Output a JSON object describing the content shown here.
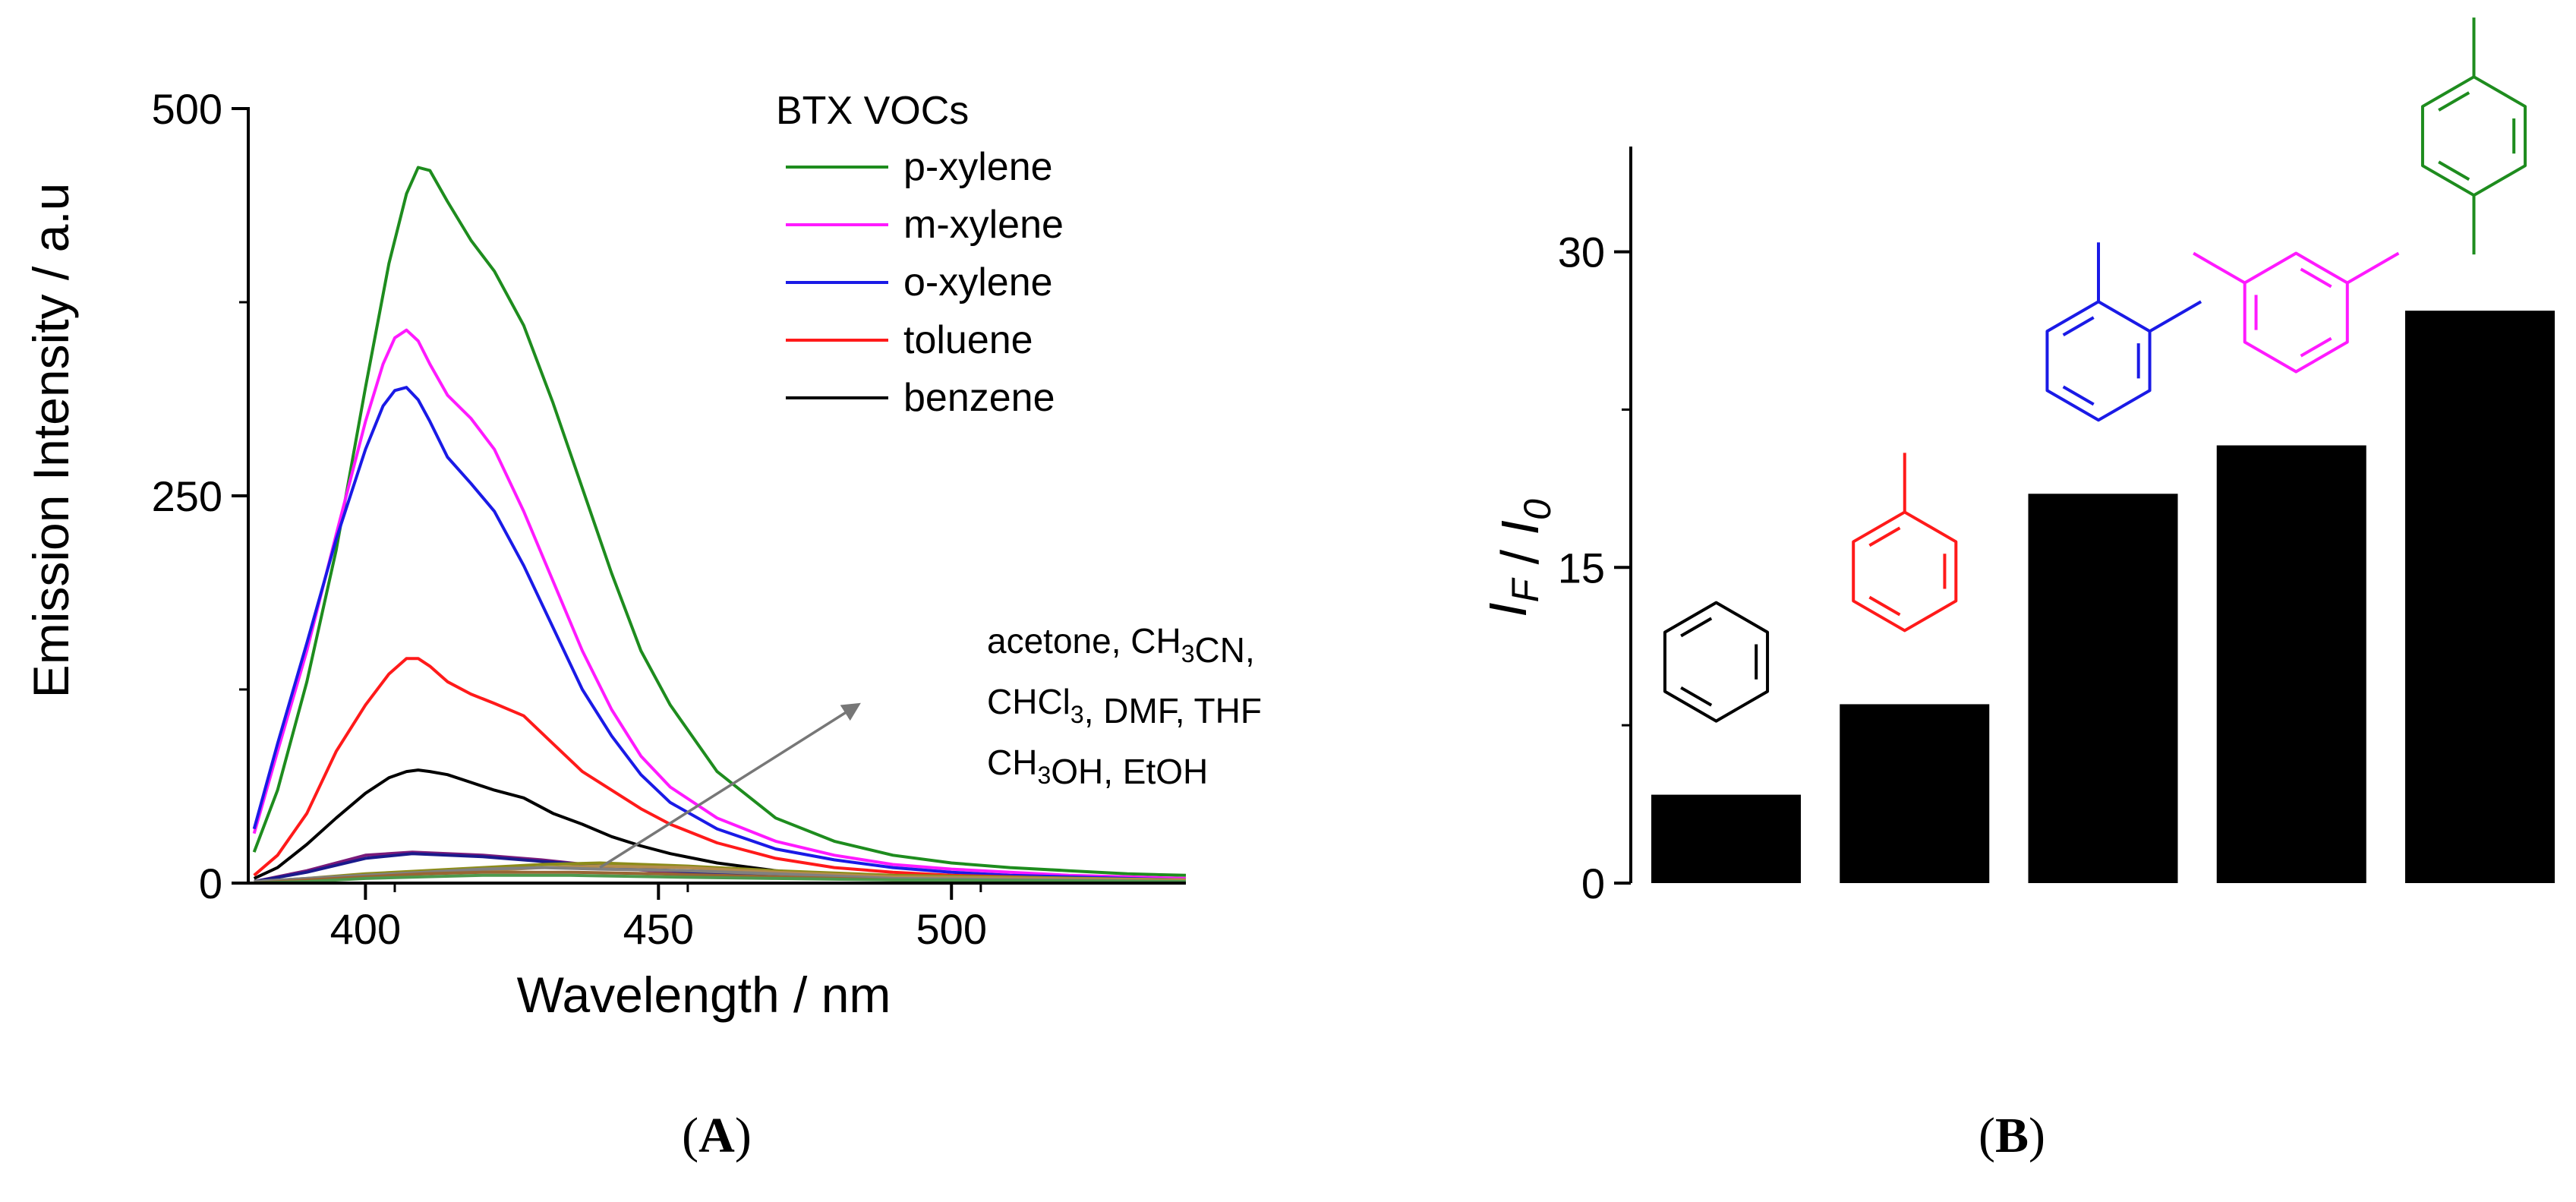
{
  "chart_data": [
    {
      "panel_label": "A",
      "type": "line",
      "title": "",
      "xlabel": "Wavelength / nm",
      "ylabel": "Emission Intensity / a.u",
      "xlim": [
        380,
        540
      ],
      "ylim": [
        0,
        500
      ],
      "xticks": [
        400,
        450,
        500
      ],
      "yticks": [
        0,
        250,
        500
      ],
      "grid": false,
      "legend": {
        "title": "BTX VOCs",
        "position": "top-right"
      },
      "series": [
        {
          "name": "p-xylene",
          "color": "#1e8c1e",
          "x": [
            381,
            385,
            390,
            395,
            400,
            404,
            407,
            409,
            411,
            414,
            418,
            422,
            427,
            432,
            437,
            442,
            447,
            452,
            460,
            470,
            480,
            490,
            500,
            510,
            520,
            530,
            540
          ],
          "y": [
            20,
            60,
            130,
            215,
            320,
            400,
            445,
            462,
            460,
            440,
            415,
            395,
            360,
            310,
            255,
            200,
            150,
            115,
            72,
            42,
            27,
            18,
            13,
            10,
            8,
            6,
            5
          ]
        },
        {
          "name": "m-xylene",
          "color": "#ff1aff",
          "x": [
            381,
            385,
            390,
            395,
            400,
            403,
            405,
            407,
            409,
            411,
            414,
            418,
            422,
            427,
            432,
            437,
            442,
            447,
            452,
            460,
            470,
            480,
            490,
            500,
            510,
            520,
            530,
            540
          ],
          "y": [
            32,
            85,
            150,
            225,
            298,
            335,
            352,
            357,
            350,
            335,
            315,
            300,
            280,
            240,
            195,
            150,
            112,
            82,
            62,
            42,
            27,
            18,
            12,
            9,
            7,
            5,
            4,
            3
          ]
        },
        {
          "name": "o-xylene",
          "color": "#1a1ae6",
          "x": [
            381,
            385,
            390,
            395,
            400,
            403,
            405,
            407,
            409,
            411,
            414,
            418,
            422,
            427,
            432,
            437,
            442,
            447,
            452,
            460,
            470,
            480,
            490,
            500,
            510,
            520,
            530,
            540
          ],
          "y": [
            35,
            90,
            155,
            222,
            280,
            308,
            318,
            320,
            312,
            298,
            275,
            258,
            240,
            205,
            165,
            125,
            95,
            70,
            52,
            35,
            22,
            15,
            10,
            7,
            5,
            4,
            3,
            2
          ]
        },
        {
          "name": "toluene",
          "color": "#ff1a1a",
          "x": [
            381,
            385,
            390,
            395,
            400,
            404,
            407,
            409,
            411,
            414,
            418,
            422,
            427,
            432,
            437,
            442,
            447,
            452,
            460,
            470,
            480,
            490,
            500,
            510,
            520,
            530,
            540
          ],
          "y": [
            5,
            18,
            45,
            85,
            115,
            135,
            145,
            145,
            140,
            130,
            122,
            116,
            108,
            90,
            72,
            60,
            48,
            38,
            26,
            16,
            10,
            7,
            5,
            4,
            3,
            2,
            2
          ]
        },
        {
          "name": "benzene",
          "color": "#000000",
          "x": [
            381,
            385,
            390,
            395,
            400,
            404,
            407,
            409,
            411,
            414,
            418,
            422,
            427,
            432,
            437,
            442,
            447,
            452,
            460,
            470,
            480,
            490,
            500,
            510,
            520,
            530,
            540
          ],
          "y": [
            3,
            10,
            25,
            42,
            58,
            68,
            72,
            73,
            72,
            70,
            65,
            60,
            55,
            45,
            38,
            30,
            24,
            19,
            13,
            8,
            5,
            4,
            3,
            2,
            2,
            1,
            1
          ]
        },
        {
          "name": "acetone",
          "color": "#7a1a7a",
          "x": [
            381,
            390,
            400,
            408,
            420,
            430,
            445,
            460,
            480,
            500,
            540
          ],
          "y": [
            1,
            8,
            18,
            20,
            18,
            15,
            9,
            5,
            3,
            2,
            1
          ]
        },
        {
          "name": "CH3CN",
          "color": "#1a1a8c",
          "x": [
            381,
            390,
            400,
            408,
            420,
            430,
            445,
            460,
            480,
            500,
            540
          ],
          "y": [
            1,
            7,
            16,
            19,
            17,
            14,
            10,
            6,
            3,
            2,
            1
          ]
        },
        {
          "name": "CHCl3",
          "color": "#8c8c1a",
          "x": [
            381,
            390,
            400,
            410,
            420,
            430,
            440,
            455,
            470,
            490,
            540
          ],
          "y": [
            1,
            3,
            6,
            8,
            10,
            12,
            13,
            11,
            8,
            5,
            2
          ]
        },
        {
          "name": "DMF",
          "color": "#b38c4d",
          "x": [
            381,
            390,
            400,
            410,
            420,
            430,
            440,
            455,
            470,
            490,
            540
          ],
          "y": [
            1,
            2,
            4,
            6,
            8,
            10,
            11,
            10,
            7,
            4,
            2
          ]
        },
        {
          "name": "THF",
          "color": "#808080",
          "x": [
            381,
            390,
            400,
            410,
            420,
            430,
            440,
            455,
            470,
            490,
            540
          ],
          "y": [
            1,
            3,
            5,
            7,
            9,
            10,
            9,
            8,
            6,
            3,
            1
          ]
        },
        {
          "name": "CH3OH",
          "color": "#996633",
          "x": [
            381,
            390,
            400,
            410,
            420,
            435,
            450,
            470,
            490,
            540
          ],
          "y": [
            0,
            2,
            4,
            6,
            7,
            7,
            6,
            4,
            2,
            1
          ]
        },
        {
          "name": "EtOH",
          "color": "#4d994d",
          "x": [
            381,
            390,
            400,
            410,
            420,
            435,
            450,
            470,
            490,
            540
          ],
          "y": [
            0,
            1,
            3,
            4,
            5,
            5,
            4,
            3,
            2,
            1
          ]
        }
      ],
      "annotations": [
        {
          "lines": [
            [
              {
                "t": "acetone, CH"
              },
              {
                "t": "3",
                "sub": true
              },
              {
                "t": "CN,"
              }
            ],
            [
              {
                "t": "CHCl"
              },
              {
                "t": "3",
                "sub": true
              },
              {
                "t": ", DMF, THF"
              }
            ],
            [
              {
                "t": "CH"
              },
              {
                "t": "3",
                "sub": true
              },
              {
                "t": "OH, EtOH"
              }
            ]
          ],
          "arrow_from": [
            440,
            10
          ],
          "arrow_to": [
            484,
            115
          ]
        }
      ]
    },
    {
      "panel_label": "B",
      "type": "bar",
      "title": "",
      "xlabel": "",
      "ylabel": "I_F / I_0",
      "ylabel_parts": [
        {
          "t": "I",
          "italic": true
        },
        {
          "t": "F",
          "italic": true,
          "sub": true
        },
        {
          "t": " / ",
          "italic": false
        },
        {
          "t": "I",
          "italic": true
        },
        {
          "t": "0",
          "italic": true,
          "sub": true
        }
      ],
      "ylim": [
        0,
        35
      ],
      "yticks": [
        0,
        15,
        30
      ],
      "grid": false,
      "categories": [
        "benzene",
        "toluene",
        "o-xylene",
        "m-xylene",
        "p-xylene"
      ],
      "values": [
        4.2,
        8.5,
        18.5,
        20.8,
        27.2
      ],
      "bar_color": "#000000",
      "structure_colors": [
        "#000000",
        "#ff1a1a",
        "#1a1ae6",
        "#ff1aff",
        "#1e8c1e"
      ]
    }
  ],
  "captions": {
    "a": "A",
    "b": "B"
  }
}
